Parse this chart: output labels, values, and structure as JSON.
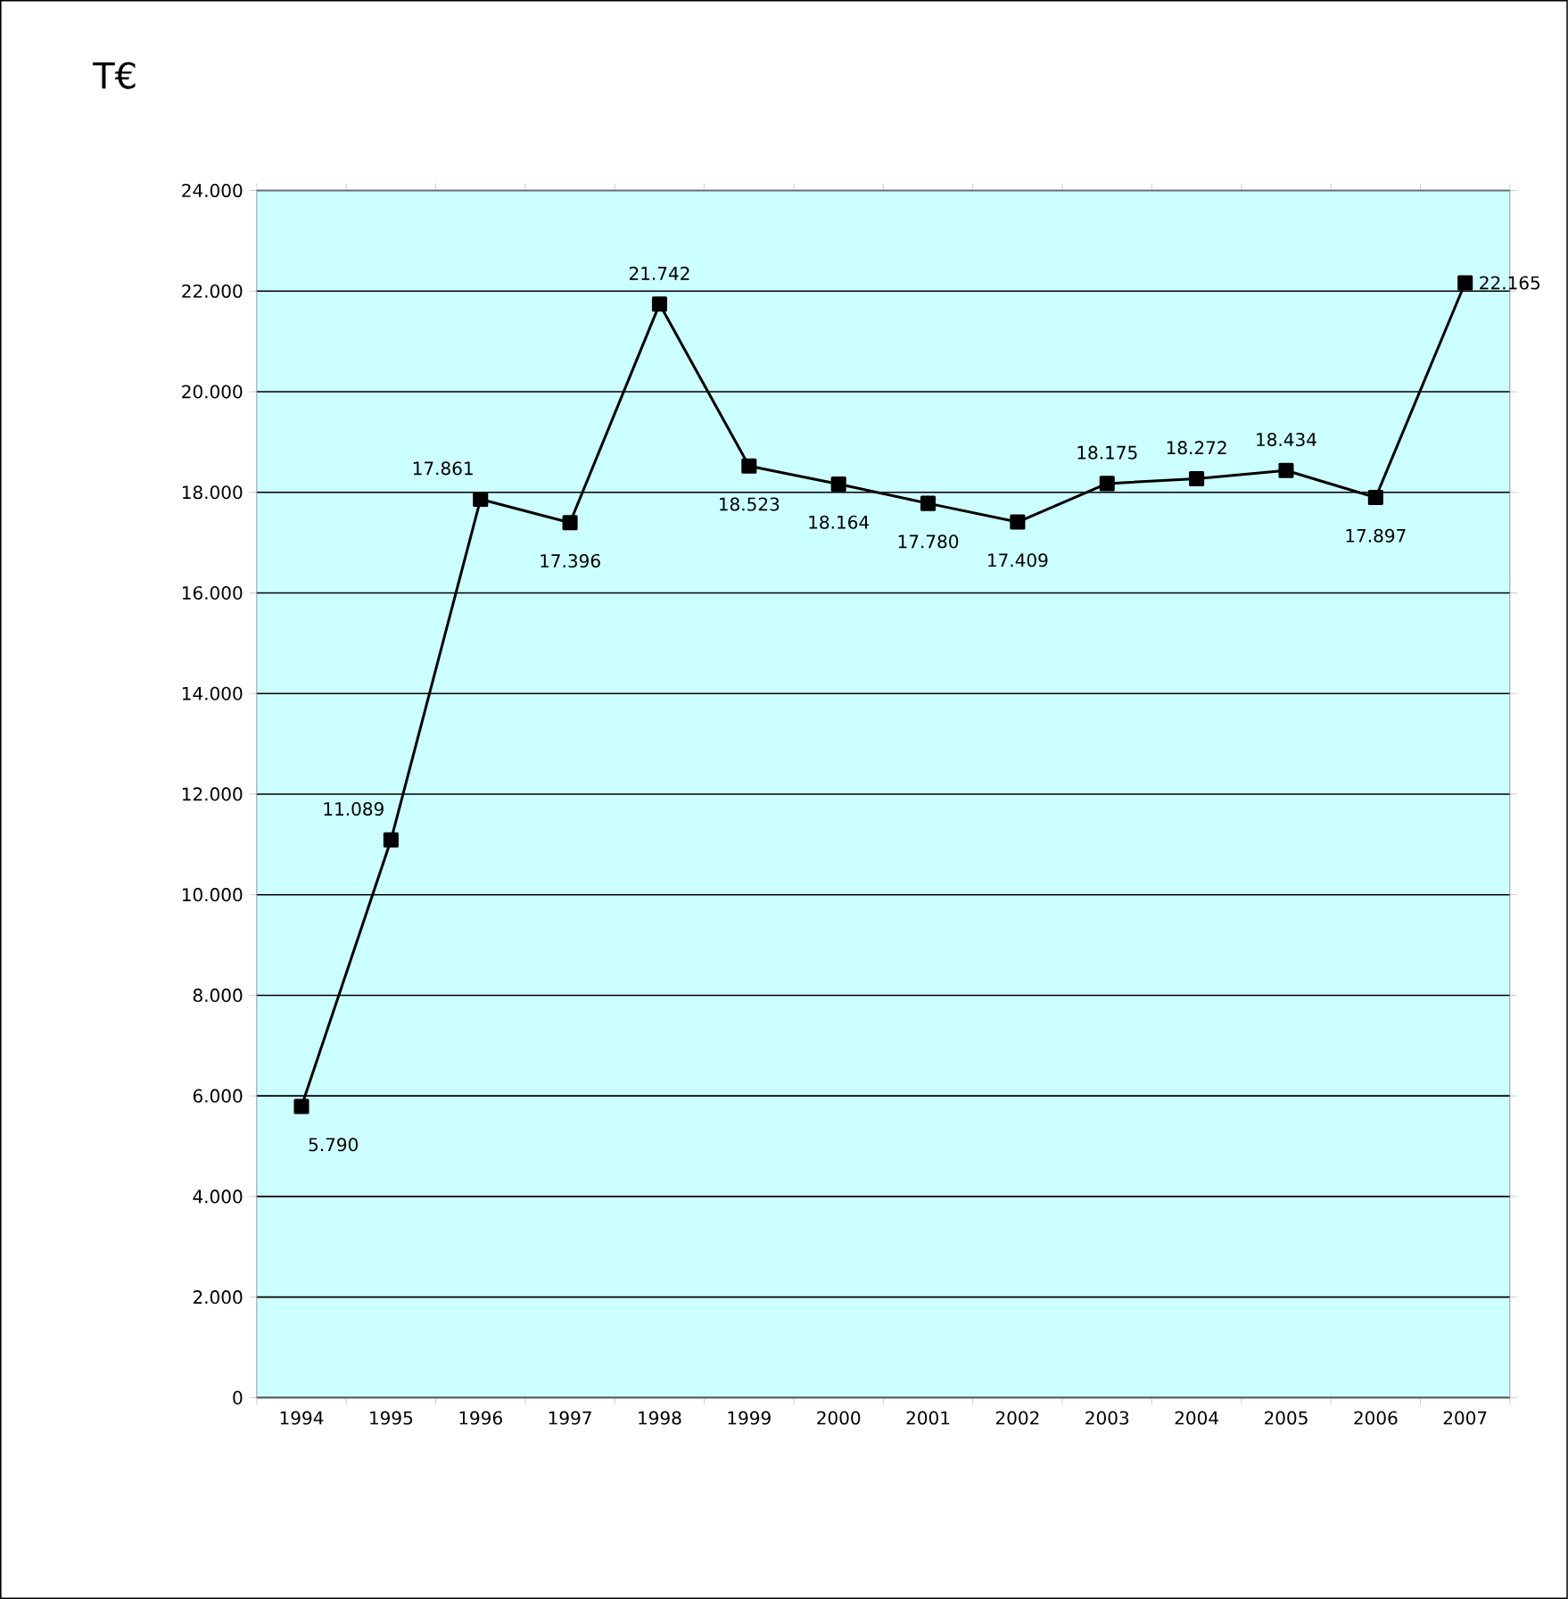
{
  "chart_data": {
    "type": "line",
    "ylabel": "T€",
    "categories": [
      "1994",
      "1995",
      "1996",
      "1997",
      "1998",
      "1999",
      "2000",
      "2001",
      "2002",
      "2003",
      "2004",
      "2005",
      "2006",
      "2007"
    ],
    "values": [
      5790,
      11089,
      17861,
      17396,
      21742,
      18523,
      18164,
      17780,
      17409,
      18175,
      18272,
      18434,
      17897,
      22165
    ],
    "value_labels": [
      "5.790",
      "11.089",
      "17.861",
      "17.396",
      "21.742",
      "18.523",
      "18.164",
      "17.780",
      "17.409",
      "18.175",
      "18.272",
      "18.434",
      "17.897",
      "22.165"
    ],
    "color": "#000000",
    "marker": "square",
    "line_style": "solid",
    "grid": "y",
    "ylim": [
      0,
      24000
    ],
    "yticks": [
      0,
      {
        "value": 2000,
        "label": "2.000"
      },
      {
        "value": 4000,
        "label": "4.000"
      },
      {
        "value": 6000,
        "label": "6.000"
      },
      {
        "value": 8000,
        "label": "8.000"
      },
      {
        "value": 10000,
        "label": "10.000"
      },
      {
        "value": 12000,
        "label": "12.000"
      },
      {
        "value": 14000,
        "label": "14.000"
      },
      {
        "value": 16000,
        "label": "16.000"
      },
      {
        "value": 18000,
        "label": "18.000"
      },
      {
        "value": 20000,
        "label": "20.000"
      },
      {
        "value": 22000,
        "label": "22.000"
      },
      {
        "value": 24000,
        "label": "24.000"
      }
    ]
  }
}
